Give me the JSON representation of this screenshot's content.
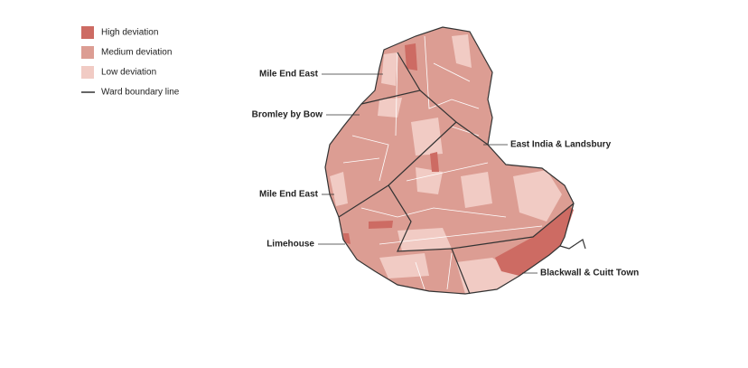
{
  "legend": {
    "items": [
      {
        "label": "High deviation",
        "color": "#cd6b63"
      },
      {
        "label": "Medium deviation",
        "color": "#dc9d93"
      },
      {
        "label": "Low deviation",
        "color": "#f1cbc4"
      },
      {
        "label": "Ward boundary line",
        "color": "#333333"
      }
    ]
  },
  "labels": [
    "Mile End East",
    "Bromley by Bow",
    "East India & Landsbury",
    "Mile End East",
    "Limehouse",
    "Blackwall & Cuitt Town"
  ]
}
